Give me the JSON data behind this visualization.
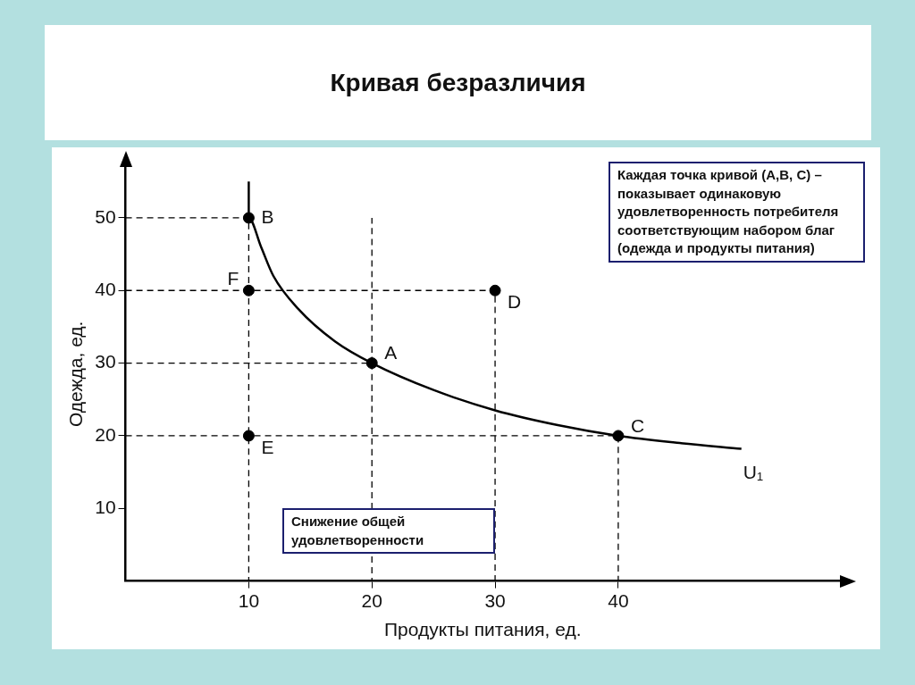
{
  "chart_data": {
    "type": "line",
    "title": "Кривая безразличия",
    "xlabel": "Продукты питания, ед.",
    "ylabel": "Одежда, ед.",
    "xlim": [
      0,
      58
    ],
    "ylim": [
      0,
      57
    ],
    "xticks": [
      10,
      20,
      30,
      40
    ],
    "yticks": [
      10,
      20,
      30,
      40,
      50
    ],
    "grid": false,
    "legend": false,
    "series": [
      {
        "name": "U₁",
        "color": "#000000",
        "marker": "none",
        "line_style": "solid",
        "x": [
          10,
          10,
          11,
          12,
          14,
          17,
          20,
          25,
          30,
          35,
          40,
          45,
          50
        ],
        "values": [
          55,
          50,
          46,
          42,
          37.5,
          33,
          30,
          26.3,
          23.5,
          21.5,
          20,
          19,
          18.2
        ]
      },
      {
        "type": "line",
        "color": "#000000",
        "marker": "none",
        "line_style": "dashed",
        "x": [
          0,
          10,
          10
        ],
        "values": [
          50,
          50,
          0
        ]
      },
      {
        "type": "line",
        "color": "#000000",
        "marker": "none",
        "line_style": "dashed",
        "x": [
          0,
          30,
          30
        ],
        "values": [
          40,
          40,
          0
        ]
      },
      {
        "type": "line",
        "color": "#000000",
        "marker": "none",
        "line_style": "dashed",
        "x": [
          0,
          20,
          20
        ],
        "values": [
          30,
          30,
          0
        ]
      },
      {
        "type": "line",
        "color": "#000000",
        "marker": "none",
        "line_style": "dashed",
        "x": [
          20,
          20
        ],
        "values": [
          30,
          50
        ]
      },
      {
        "type": "line",
        "color": "#000000",
        "marker": "none",
        "line_style": "dashed",
        "x": [
          0,
          40,
          40
        ],
        "values": [
          20,
          20,
          0
        ]
      },
      {
        "type": "scatter",
        "color": "#000000",
        "marker": "circle",
        "x": [
          10,
          20,
          40,
          30,
          10,
          10
        ],
        "values": [
          50,
          30,
          20,
          40,
          40,
          20
        ]
      }
    ],
    "annotations": [
      {
        "text": "B",
        "x": 10,
        "y": 50
      },
      {
        "text": "A",
        "x": 20,
        "y": 30
      },
      {
        "text": "C",
        "x": 40,
        "y": 20
      },
      {
        "text": "D",
        "x": 30,
        "y": 40
      },
      {
        "text": "F",
        "x": 10,
        "y": 40
      },
      {
        "text": "E",
        "x": 10,
        "y": 20
      },
      "Каждая точка кривой (A,B, C) – показывает одинаковую удовлетворенность потребителя соответствующим набором благ (одежда и продукты питания)",
      "Снижение общей удовлетворенности"
    ]
  }
}
